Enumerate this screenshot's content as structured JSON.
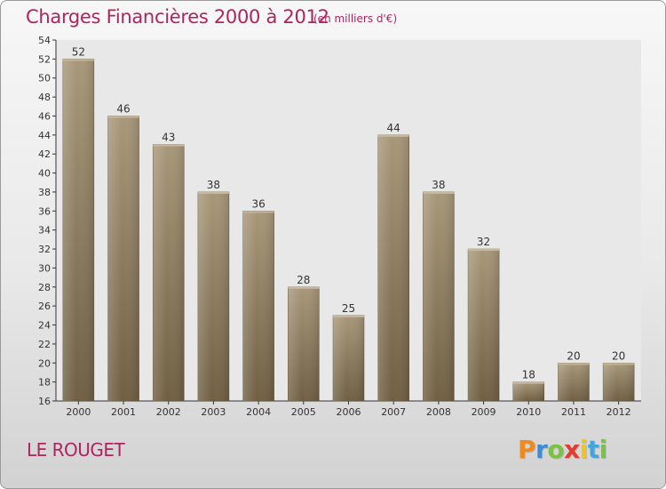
{
  "header": {
    "title": "Charges Financières 2000 à 2012",
    "subtitle": "(en milliers d'€)"
  },
  "footer": {
    "place": "LE ROUGET",
    "logo": "Proxiti"
  },
  "colors": {
    "title": "#b0245d",
    "bar_light": "#a8987a",
    "bar_dark": "#6f5f43",
    "grid_background": "#e6e6e6"
  },
  "chart_data": {
    "type": "bar",
    "title": "Charges Financières 2000 à 2012",
    "subtitle": "(en milliers d'€)",
    "categories": [
      "2000",
      "2001",
      "2002",
      "2003",
      "2004",
      "2005",
      "2006",
      "2007",
      "2008",
      "2009",
      "2010",
      "2011",
      "2012"
    ],
    "values": [
      52,
      46,
      43,
      38,
      36,
      28,
      25,
      44,
      38,
      32,
      18,
      20,
      20
    ],
    "ylim": [
      16,
      54
    ],
    "yticks": [
      16,
      18,
      20,
      22,
      24,
      26,
      28,
      30,
      32,
      34,
      36,
      38,
      40,
      42,
      44,
      46,
      48,
      50,
      52,
      54
    ],
    "xlabel": "",
    "ylabel": "",
    "grid": false,
    "legend": "none"
  }
}
